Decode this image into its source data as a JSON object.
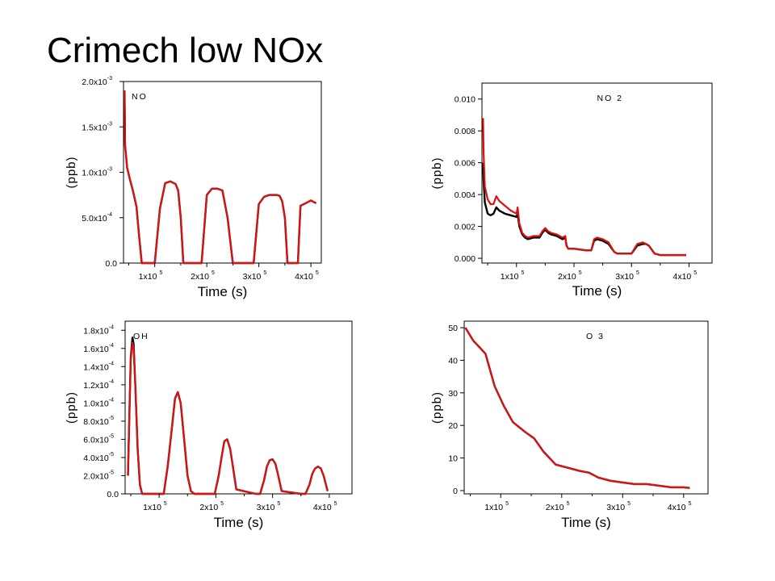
{
  "slide": {
    "title": "Crimech low NOx"
  },
  "colors": {
    "run_a": "#000000",
    "run_b": "#dd1111"
  },
  "chart_data": [
    {
      "id": "no",
      "type": "line",
      "title": "NO",
      "xlabel": "Time (s)",
      "ylabel": "(ppb)",
      "xlim": [
        40000,
        420000
      ],
      "ylim": [
        0,
        0.002
      ],
      "xticks": [
        {
          "v": 100000,
          "m": "1x10",
          "e": "5"
        },
        {
          "v": 200000,
          "m": "2x10",
          "e": "5"
        },
        {
          "v": 300000,
          "m": "3x10",
          "e": "5"
        },
        {
          "v": 400000,
          "m": "4x10",
          "e": "5"
        }
      ],
      "yticks": [
        {
          "v": 0,
          "m": "0.0",
          "e": ""
        },
        {
          "v": 0.0005,
          "m": "5.0x10",
          "e": "-4"
        },
        {
          "v": 0.001,
          "m": "1.0x10",
          "e": "-3"
        },
        {
          "v": 0.0015,
          "m": "1.5x10",
          "e": "-3"
        },
        {
          "v": 0.002,
          "m": "2.0x10",
          "e": "-3"
        }
      ],
      "series": [
        {
          "color_key": "run_a",
          "x": [
            42000,
            43000,
            47000,
            52000,
            58000,
            65000,
            70000,
            75000,
            80000,
            90000,
            95000,
            100000,
            110000,
            120000,
            130000,
            140000,
            145000,
            150000,
            155000,
            160000,
            165000,
            170000,
            180000,
            190000,
            200000,
            210000,
            220000,
            230000,
            240000,
            250000,
            260000,
            270000,
            280000,
            290000,
            300000,
            310000,
            320000,
            335000,
            340000,
            345000,
            350000,
            355000,
            360000,
            365000,
            370000,
            375000,
            380000,
            390000,
            400000,
            410000
          ],
          "y": [
            0.0019,
            0.0013,
            0.00105,
            0.00093,
            0.0008,
            0.00062,
            0.0003,
            0.0,
            0.0,
            0.0,
            0.0,
            0.0,
            0.0006,
            0.00088,
            0.0009,
            0.00087,
            0.0008,
            0.0005,
            0.0,
            0.0,
            0.0,
            0.0,
            0.0,
            0.0,
            0.00075,
            0.00082,
            0.00082,
            0.0008,
            0.0005,
            0.0,
            0.0,
            0.0,
            0.0,
            0.0,
            0.00065,
            0.00073,
            0.00075,
            0.00075,
            0.00074,
            0.00068,
            0.0005,
            0.0,
            0.0,
            0.0,
            0.0,
            0.0,
            0.00063,
            0.00066,
            0.00069,
            0.00066
          ]
        },
        {
          "color_key": "run_b",
          "x": [
            42000,
            43000,
            47000,
            52000,
            58000,
            65000,
            70000,
            75000,
            80000,
            90000,
            95000,
            100000,
            110000,
            120000,
            130000,
            140000,
            145000,
            150000,
            155000,
            160000,
            165000,
            170000,
            180000,
            190000,
            200000,
            210000,
            220000,
            230000,
            240000,
            250000,
            260000,
            270000,
            280000,
            290000,
            300000,
            310000,
            320000,
            335000,
            340000,
            345000,
            350000,
            355000,
            360000,
            365000,
            370000,
            375000,
            380000,
            390000,
            400000,
            410000
          ],
          "y": [
            0.0019,
            0.0013,
            0.00105,
            0.00093,
            0.0008,
            0.00062,
            0.0003,
            0.0,
            0.0,
            0.0,
            0.0,
            0.0,
            0.0006,
            0.00088,
            0.0009,
            0.00087,
            0.0008,
            0.0005,
            0.0,
            0.0,
            0.0,
            0.0,
            0.0,
            0.0,
            0.00075,
            0.00082,
            0.00082,
            0.0008,
            0.0005,
            0.0,
            0.0,
            0.0,
            0.0,
            0.0,
            0.00065,
            0.00073,
            0.00075,
            0.00075,
            0.00074,
            0.00068,
            0.0005,
            0.0,
            0.0,
            0.0,
            0.0,
            0.0,
            0.00063,
            0.00066,
            0.00069,
            0.00066
          ]
        }
      ]
    },
    {
      "id": "no2",
      "type": "line",
      "title": "NO 2",
      "xlabel": "Time (s)",
      "ylabel": "(ppb)",
      "xlim": [
        40000,
        440000
      ],
      "ylim": [
        -0.0003,
        0.011
      ],
      "xticks": [
        {
          "v": 100000,
          "m": "1x10",
          "e": "5"
        },
        {
          "v": 200000,
          "m": "2x10",
          "e": "5"
        },
        {
          "v": 300000,
          "m": "3x10",
          "e": "5"
        },
        {
          "v": 400000,
          "m": "4x10",
          "e": "5"
        }
      ],
      "yticks": [
        {
          "v": 0,
          "m": "0.000",
          "e": ""
        },
        {
          "v": 0.002,
          "m": "0.002",
          "e": ""
        },
        {
          "v": 0.004,
          "m": "0.004",
          "e": ""
        },
        {
          "v": 0.006,
          "m": "0.006",
          "e": ""
        },
        {
          "v": 0.008,
          "m": "0.008",
          "e": ""
        },
        {
          "v": 0.01,
          "m": "0.010",
          "e": ""
        }
      ],
      "series": [
        {
          "color_key": "run_a",
          "x": [
            42000,
            43000,
            45000,
            50000,
            55000,
            60000,
            65000,
            70000,
            80000,
            90000,
            100000,
            102000,
            105000,
            110000,
            115000,
            120000,
            130000,
            140000,
            145000,
            150000,
            155000,
            160000,
            170000,
            180000,
            185000,
            187000,
            190000,
            200000,
            220000,
            230000,
            235000,
            240000,
            250000,
            260000,
            270000,
            275000,
            280000,
            300000,
            310000,
            320000,
            325000,
            330000,
            340000,
            350000,
            355000,
            360000,
            380000,
            395000
          ],
          "y": [
            0.006,
            0.0048,
            0.0035,
            0.0028,
            0.0027,
            0.0028,
            0.0032,
            0.003,
            0.0028,
            0.0027,
            0.0026,
            0.0028,
            0.002,
            0.0015,
            0.0013,
            0.0012,
            0.0013,
            0.0013,
            0.0016,
            0.0018,
            0.0016,
            0.0015,
            0.0014,
            0.0012,
            0.0013,
            0.0008,
            0.0006,
            0.0006,
            0.0005,
            0.0005,
            0.0011,
            0.0012,
            0.0011,
            0.0009,
            0.0004,
            0.0003,
            0.0003,
            0.0003,
            0.0008,
            0.0009,
            0.0009,
            0.0008,
            0.0003,
            0.0002,
            0.0002,
            0.0002,
            0.0002,
            0.0002
          ]
        },
        {
          "color_key": "run_b",
          "x": [
            42000,
            43000,
            45000,
            50000,
            55000,
            60000,
            65000,
            70000,
            80000,
            90000,
            100000,
            102000,
            105000,
            110000,
            115000,
            120000,
            130000,
            140000,
            145000,
            150000,
            155000,
            160000,
            170000,
            180000,
            185000,
            187000,
            190000,
            200000,
            220000,
            230000,
            235000,
            240000,
            250000,
            260000,
            270000,
            275000,
            280000,
            300000,
            310000,
            320000,
            325000,
            330000,
            340000,
            350000,
            355000,
            360000,
            380000,
            395000
          ],
          "y": [
            0.0088,
            0.0065,
            0.0045,
            0.0037,
            0.0034,
            0.0034,
            0.0039,
            0.0036,
            0.0033,
            0.003,
            0.0028,
            0.0032,
            0.0022,
            0.0016,
            0.0014,
            0.0013,
            0.0014,
            0.0014,
            0.0017,
            0.0019,
            0.0017,
            0.0016,
            0.0015,
            0.0013,
            0.0014,
            0.0008,
            0.0006,
            0.0006,
            0.0005,
            0.0005,
            0.0012,
            0.0013,
            0.0012,
            0.001,
            0.0004,
            0.0003,
            0.0003,
            0.0003,
            0.0009,
            0.001,
            0.0009,
            0.0008,
            0.0003,
            0.0002,
            0.0002,
            0.0002,
            0.0002,
            0.0002
          ]
        }
      ]
    },
    {
      "id": "oh",
      "type": "line",
      "title": "OH",
      "xlabel": "Time (s)",
      "ylabel": "(ppb)",
      "xlim": [
        40000,
        440000
      ],
      "ylim": [
        0,
        0.00019
      ],
      "xticks": [
        {
          "v": 100000,
          "m": "1x10",
          "e": "5"
        },
        {
          "v": 200000,
          "m": "2x10",
          "e": "5"
        },
        {
          "v": 300000,
          "m": "3x10",
          "e": "5"
        },
        {
          "v": 400000,
          "m": "4x10",
          "e": "5"
        }
      ],
      "yticks": [
        {
          "v": 0,
          "m": "0.0",
          "e": ""
        },
        {
          "v": 2e-05,
          "m": "2.0x10",
          "e": "-5"
        },
        {
          "v": 4e-05,
          "m": "4.0x10",
          "e": "-5"
        },
        {
          "v": 6e-05,
          "m": "6.0x10",
          "e": "-5"
        },
        {
          "v": 8e-05,
          "m": "8.0x10",
          "e": "-5"
        },
        {
          "v": 0.0001,
          "m": "1.0x10",
          "e": "-4"
        },
        {
          "v": 0.00012,
          "m": "1.2x10",
          "e": "-4"
        },
        {
          "v": 0.00014,
          "m": "1.4x10",
          "e": "-4"
        },
        {
          "v": 0.00016,
          "m": "1.6x10",
          "e": "-4"
        },
        {
          "v": 0.00018,
          "m": "1.8x10",
          "e": "-4"
        }
      ],
      "series": [
        {
          "color_key": "run_a",
          "x": [
            45000,
            48000,
            50000,
            53000,
            55000,
            58000,
            62000,
            66000,
            70000,
            100000,
            108000,
            115000,
            122000,
            128000,
            133000,
            138000,
            144000,
            150000,
            156000,
            162000,
            190000,
            198000,
            205000,
            210000,
            215000,
            220000,
            225000,
            230000,
            236000,
            270000,
            278000,
            285000,
            290000,
            295000,
            300000,
            305000,
            310000,
            316000,
            350000,
            358000,
            365000,
            370000,
            375000,
            380000,
            385000,
            390000,
            397000
          ],
          "y": [
            2e-05,
            0.0001,
            0.00015,
            0.000172,
            0.000165,
            0.00012,
            5e-05,
            1e-05,
            0.0,
            0.0,
            0.0,
            3e-05,
            7e-05,
            0.000105,
            0.000112,
            0.0001,
            6e-05,
            2e-05,
            3e-06,
            0.0,
            0.0,
            0.0,
            2e-05,
            4e-05,
            5.8e-05,
            6e-05,
            5e-05,
            3e-05,
            5e-06,
            0.0,
            0.0,
            1.5e-05,
            3e-05,
            3.7e-05,
            3.8e-05,
            3.3e-05,
            2e-05,
            3e-06,
            0.0,
            0.0,
            1e-05,
            2.2e-05,
            2.8e-05,
            3e-05,
            2.8e-05,
            2e-05,
            3e-06
          ]
        },
        {
          "color_key": "run_b",
          "x": [
            45000,
            48000,
            50000,
            53000,
            55000,
            58000,
            62000,
            66000,
            70000,
            100000,
            108000,
            115000,
            122000,
            128000,
            133000,
            138000,
            144000,
            150000,
            156000,
            162000,
            190000,
            198000,
            205000,
            210000,
            215000,
            220000,
            225000,
            230000,
            236000,
            270000,
            278000,
            285000,
            290000,
            295000,
            300000,
            305000,
            310000,
            316000,
            350000,
            358000,
            365000,
            370000,
            375000,
            380000,
            385000,
            390000,
            397000
          ],
          "y": [
            2e-05,
            0.0001,
            0.000148,
            0.000166,
            0.00016,
            0.00012,
            5e-05,
            1e-05,
            0.0,
            0.0,
            0.0,
            3e-05,
            7e-05,
            0.000105,
            0.000112,
            0.0001,
            6e-05,
            2e-05,
            3e-06,
            0.0,
            0.0,
            0.0,
            2e-05,
            4e-05,
            5.8e-05,
            6e-05,
            5e-05,
            3e-05,
            5e-06,
            0.0,
            0.0,
            1.5e-05,
            3e-05,
            3.7e-05,
            3.8e-05,
            3.3e-05,
            2e-05,
            3e-06,
            0.0,
            0.0,
            1e-05,
            2.2e-05,
            2.8e-05,
            3e-05,
            2.8e-05,
            2e-05,
            3e-06
          ]
        }
      ]
    },
    {
      "id": "o3",
      "type": "line",
      "title": "O 3",
      "xlabel": "Time (s)",
      "ylabel": "(ppb)",
      "xlim": [
        40000,
        440000
      ],
      "ylim": [
        -1,
        52
      ],
      "xticks": [
        {
          "v": 100000,
          "m": "1x10",
          "e": "5"
        },
        {
          "v": 200000,
          "m": "2x10",
          "e": "5"
        },
        {
          "v": 300000,
          "m": "3x10",
          "e": "5"
        },
        {
          "v": 400000,
          "m": "4x10",
          "e": "5"
        }
      ],
      "yticks": [
        {
          "v": 0,
          "m": "0",
          "e": ""
        },
        {
          "v": 10,
          "m": "10",
          "e": ""
        },
        {
          "v": 20,
          "m": "20",
          "e": ""
        },
        {
          "v": 30,
          "m": "30",
          "e": ""
        },
        {
          "v": 40,
          "m": "40",
          "e": ""
        },
        {
          "v": 50,
          "m": "50",
          "e": ""
        }
      ],
      "series": [
        {
          "color_key": "run_a",
          "x": [
            42000,
            55000,
            65000,
            75000,
            90000,
            105000,
            120000,
            140000,
            155000,
            170000,
            190000,
            210000,
            230000,
            245000,
            260000,
            280000,
            300000,
            320000,
            340000,
            360000,
            380000,
            400000,
            410000
          ],
          "y": [
            50,
            46,
            44,
            42,
            32,
            26,
            21,
            18,
            16,
            12,
            8,
            7,
            6,
            5.5,
            4,
            3,
            2.5,
            2,
            2,
            1.5,
            1,
            1,
            0.8
          ]
        },
        {
          "color_key": "run_b",
          "x": [
            42000,
            55000,
            65000,
            75000,
            90000,
            105000,
            120000,
            140000,
            155000,
            170000,
            190000,
            210000,
            230000,
            245000,
            260000,
            280000,
            300000,
            320000,
            340000,
            360000,
            380000,
            400000,
            410000
          ],
          "y": [
            50,
            46,
            44,
            42,
            32,
            26,
            21,
            18,
            16,
            12,
            8,
            7,
            6,
            5.5,
            4,
            3,
            2.5,
            2,
            2,
            1.5,
            1,
            1,
            0.8
          ]
        }
      ]
    }
  ]
}
